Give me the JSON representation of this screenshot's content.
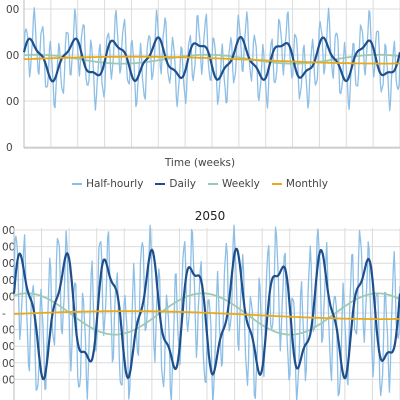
{
  "chart_data": [
    {
      "type": "line",
      "title": "",
      "xlabel": "Time (weeks)",
      "ylabel": "",
      "y_tick_labels": [
        "00",
        "00",
        "00",
        "0"
      ],
      "grid": true,
      "legend_position": "bottom",
      "series": [
        {
          "name": "Half-hourly",
          "color": "#8dbfe6",
          "mean": 0.6,
          "amplitude": 0.35,
          "wave": "fast"
        },
        {
          "name": "Daily",
          "color": "#1e4f8c",
          "mean": 0.6,
          "amplitude": 0.15,
          "wave": "medium"
        },
        {
          "name": "Weekly",
          "color": "#9dc9b1",
          "mean": 0.6,
          "amplitude": 0.03,
          "wave": "slow"
        },
        {
          "name": "Monthly",
          "color": "#e8a91a",
          "mean": 0.6,
          "amplitude": 0.02,
          "wave": "trend"
        }
      ]
    },
    {
      "type": "line",
      "title": "2050",
      "xlabel": "",
      "ylabel": "",
      "y_tick_labels": [
        "00",
        "00",
        "00",
        "00",
        "00",
        "-",
        "00",
        "00",
        "00",
        "00"
      ],
      "grid": true,
      "series": [
        {
          "name": "Half-hourly",
          "color": "#8dbfe6",
          "mean": 0.5,
          "amplitude": 0.55,
          "wave": "fast"
        },
        {
          "name": "Daily",
          "color": "#1e4f8c",
          "mean": 0.5,
          "amplitude": 0.38,
          "wave": "medium"
        },
        {
          "name": "Weekly",
          "color": "#9dc9b1",
          "mean": 0.5,
          "amplitude": 0.12,
          "wave": "slow"
        },
        {
          "name": "Monthly",
          "color": "#e8a91a",
          "mean": 0.5,
          "amplitude": 0.02,
          "wave": "trend"
        }
      ]
    }
  ],
  "legend": [
    {
      "label": "Half-hourly",
      "color": "#8dbfe6"
    },
    {
      "label": "Daily",
      "color": "#1e4f8c"
    },
    {
      "label": "Weekly",
      "color": "#9dc9b1"
    },
    {
      "label": "Monthly",
      "color": "#e8a91a"
    }
  ]
}
